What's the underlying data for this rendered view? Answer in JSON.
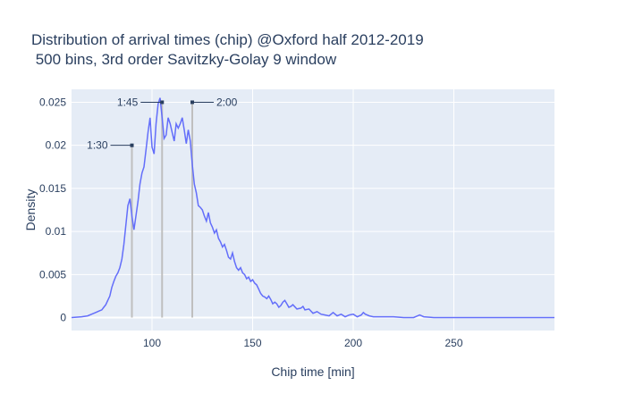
{
  "chart_data": {
    "type": "line",
    "title_lines": [
      "Distribution of arrival times (chip) @Oxford half 2012-2019",
      " 500 bins, 3rd order Savitzky-Golay 9 window"
    ],
    "xlabel": "Chip time [min]",
    "ylabel": "Density",
    "xlim": [
      60,
      300
    ],
    "ylim": [
      -0.0015,
      0.0265
    ],
    "x_ticks": [
      100,
      150,
      200,
      250
    ],
    "x_tick_labels": [
      "100",
      "150",
      "200",
      "250"
    ],
    "y_ticks": [
      0,
      0.005,
      0.01,
      0.015,
      0.02,
      0.025
    ],
    "y_tick_labels": [
      "0",
      "0.005",
      "0.01",
      "0.015",
      "0.02",
      "0.025"
    ],
    "grid": true,
    "background": "#e5ecf6",
    "line_color": "#636efa",
    "marker_line_color": "#bfbfbf",
    "annotations": [
      {
        "label": "1:30",
        "x": 90,
        "y": 0.02,
        "side": "left"
      },
      {
        "label": "1:45",
        "x": 105,
        "y": 0.025,
        "side": "left"
      },
      {
        "label": "2:00",
        "x": 120,
        "y": 0.025,
        "side": "right"
      }
    ],
    "series": [
      {
        "x": [
          60,
          65,
          68,
          70,
          72,
          74,
          75,
          76,
          77,
          78,
          79,
          80,
          81,
          82,
          83,
          84,
          85,
          86,
          87,
          88,
          89,
          90,
          91,
          92,
          93,
          94,
          95,
          96,
          97,
          98,
          99,
          100,
          101,
          102,
          103,
          104,
          105,
          106,
          107,
          108,
          109,
          110,
          111,
          112,
          113,
          114,
          115,
          116,
          117,
          118,
          119,
          120,
          121,
          122,
          123,
          124,
          125,
          126,
          127,
          128,
          129,
          130,
          131,
          132,
          133,
          134,
          135,
          136,
          137,
          138,
          139,
          140,
          141,
          142,
          143,
          144,
          145,
          146,
          147,
          148,
          149,
          150,
          151,
          152,
          153,
          154,
          155,
          156,
          157,
          158,
          159,
          160,
          161,
          162,
          163,
          164,
          165,
          166,
          167,
          168,
          169,
          170,
          172,
          174,
          175,
          176,
          178,
          180,
          182,
          184,
          186,
          188,
          190,
          192,
          194,
          196,
          198,
          200,
          202,
          204,
          205,
          206,
          208,
          210,
          215,
          220,
          225,
          230,
          232,
          233,
          235,
          240,
          250,
          260,
          280,
          300
        ],
        "y": [
          0.0,
          0.0001,
          0.0002,
          0.0004,
          0.0006,
          0.0008,
          0.0009,
          0.0012,
          0.0015,
          0.002,
          0.0025,
          0.0035,
          0.0042,
          0.0048,
          0.0052,
          0.0058,
          0.0068,
          0.0085,
          0.0108,
          0.013,
          0.0138,
          0.0118,
          0.0102,
          0.0118,
          0.0135,
          0.0155,
          0.0168,
          0.0175,
          0.0195,
          0.0215,
          0.0232,
          0.0198,
          0.019,
          0.0225,
          0.0248,
          0.0255,
          0.0232,
          0.0208,
          0.0212,
          0.0232,
          0.0225,
          0.0215,
          0.0205,
          0.0225,
          0.022,
          0.0225,
          0.0232,
          0.0218,
          0.0202,
          0.0218,
          0.0205,
          0.0178,
          0.0155,
          0.0145,
          0.013,
          0.0128,
          0.0125,
          0.0118,
          0.0112,
          0.0122,
          0.011,
          0.0105,
          0.0098,
          0.0102,
          0.0092,
          0.0088,
          0.0082,
          0.0085,
          0.0078,
          0.007,
          0.0068,
          0.0075,
          0.0065,
          0.0058,
          0.0055,
          0.0058,
          0.0052,
          0.005,
          0.0045,
          0.0047,
          0.0042,
          0.0044,
          0.004,
          0.0038,
          0.0033,
          0.0028,
          0.0025,
          0.0024,
          0.0022,
          0.0025,
          0.0021,
          0.0016,
          0.0018,
          0.0016,
          0.0012,
          0.0014,
          0.0018,
          0.002,
          0.0016,
          0.0012,
          0.0013,
          0.0015,
          0.001,
          0.0011,
          0.0013,
          0.0009,
          0.001,
          0.0005,
          0.0007,
          0.0004,
          0.0003,
          0.0002,
          0.0006,
          0.0002,
          0.0004,
          0.0001,
          0.0003,
          0.0004,
          0.0001,
          0.0003,
          0.0006,
          0.0004,
          0.0002,
          0.0001,
          0.0001,
          0.0001,
          0.0,
          0.0,
          0.0002,
          0.0003,
          0.0001,
          0.0,
          0.0,
          0.0,
          0.0,
          0.0
        ]
      }
    ]
  }
}
